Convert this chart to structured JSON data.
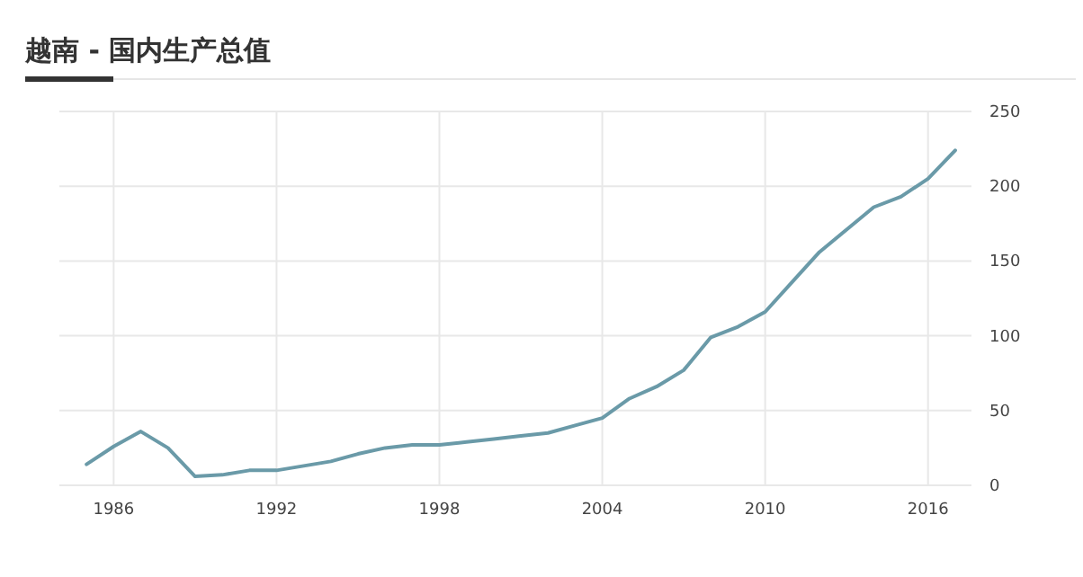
{
  "chart_data": {
    "type": "line",
    "title": "越南 - 国内生产总值",
    "x": [
      1985,
      1986,
      1987,
      1988,
      1989,
      1990,
      1991,
      1992,
      1993,
      1994,
      1995,
      1996,
      1997,
      1998,
      1999,
      2000,
      2001,
      2002,
      2003,
      2004,
      2005,
      2006,
      2007,
      2008,
      2009,
      2010,
      2011,
      2012,
      2013,
      2014,
      2015,
      2016,
      2017
    ],
    "series": [
      {
        "color": "#6a9aa8",
        "values": [
          14,
          26,
          36,
          25,
          6,
          7,
          10,
          10,
          13,
          16,
          21,
          25,
          27,
          27,
          29,
          31,
          33,
          35,
          40,
          45,
          58,
          66,
          77,
          99,
          106,
          116,
          136,
          156,
          171,
          186,
          193,
          205,
          224
        ]
      }
    ],
    "xlim": [
      1984,
      2017.6
    ],
    "xticks": [
      1986,
      1992,
      1998,
      2004,
      2010,
      2016
    ],
    "ylim": [
      0,
      250
    ],
    "yticks": [
      0,
      50,
      100,
      150,
      200,
      250
    ],
    "grid": true,
    "marker": "none",
    "line_style": "solid"
  }
}
